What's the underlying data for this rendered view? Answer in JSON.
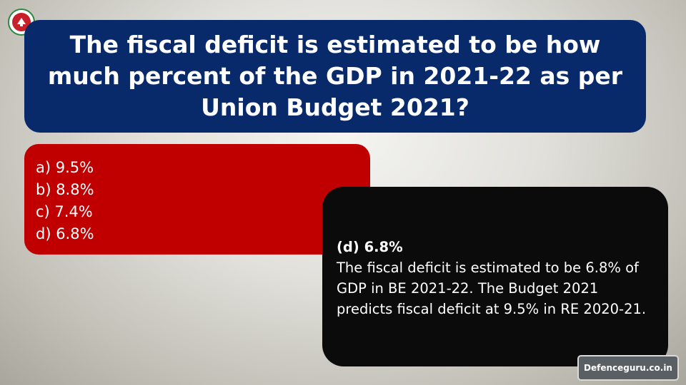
{
  "question": {
    "text": "The fiscal deficit is estimated to be how much percent of the GDP in 2021-22 as per Union Budget 2021?"
  },
  "options": [
    {
      "label": "a) 9.5%"
    },
    {
      "label": "b) 8.8%"
    },
    {
      "label": "c) 7.4%"
    },
    {
      "label": "d) 6.8%"
    }
  ],
  "answer": {
    "label": "(d) 6.8%",
    "explanation": "The fiscal deficit is estimated to be 6.8% of GDP in BE 2021-22. The Budget 2021 predicts fiscal deficit at 9.5% in RE 2020-21."
  },
  "watermark": {
    "text": "Defenceguru.co.in"
  },
  "colors": {
    "question_bg": "#082a6b",
    "options_bg": "#c00000",
    "answer_bg": "#0b0b0b"
  }
}
